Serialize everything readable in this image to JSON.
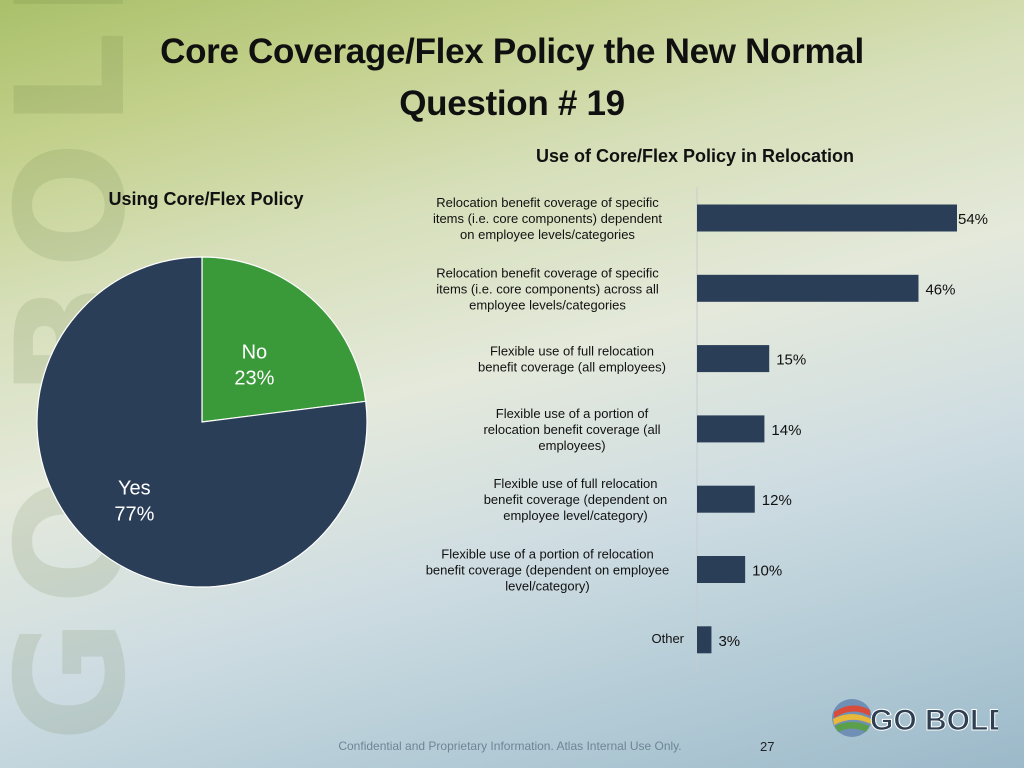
{
  "slide": {
    "title_line1": "Core Coverage/Flex Policy the New Normal",
    "title_line2": "Question # 19",
    "footer": "Confidential and Proprietary Information. Atlas Internal Use Only.",
    "page_number": "27",
    "watermark": "GO BOLD",
    "logo_text": "GO BOLD"
  },
  "chart_data": [
    {
      "type": "pie",
      "title": "Using Core/Flex Policy",
      "slices": [
        {
          "label": "No",
          "value": 23,
          "display": "23%",
          "color": "#3a9a3a"
        },
        {
          "label": "Yes",
          "value": 77,
          "display": "77%",
          "color": "#2b3e57"
        }
      ]
    },
    {
      "type": "bar",
      "orientation": "horizontal",
      "title": "Use of Core/Flex Policy in Relocation",
      "bar_color": "#2b3e57",
      "xlim": [
        0,
        54
      ],
      "categories": [
        "Relocation benefit coverage of specific items (i.e. core components) dependent on employee levels/categories",
        "Relocation benefit coverage of specific items (i.e. core components) across all employee levels/categories",
        "Flexible use of full relocation benefit coverage (all employees)",
        "Flexible use of a portion of relocation benefit coverage (all employees)",
        "Flexible use of full relocation benefit coverage (dependent on employee level/category)",
        "Flexible use of a portion of relocation benefit coverage (dependent on employee level/category)",
        "Other"
      ],
      "values": [
        54,
        46,
        15,
        14,
        12,
        10,
        3
      ],
      "value_labels": [
        "54%",
        "46%",
        "15%",
        "14%",
        "12%",
        "10%",
        "3%"
      ]
    }
  ]
}
